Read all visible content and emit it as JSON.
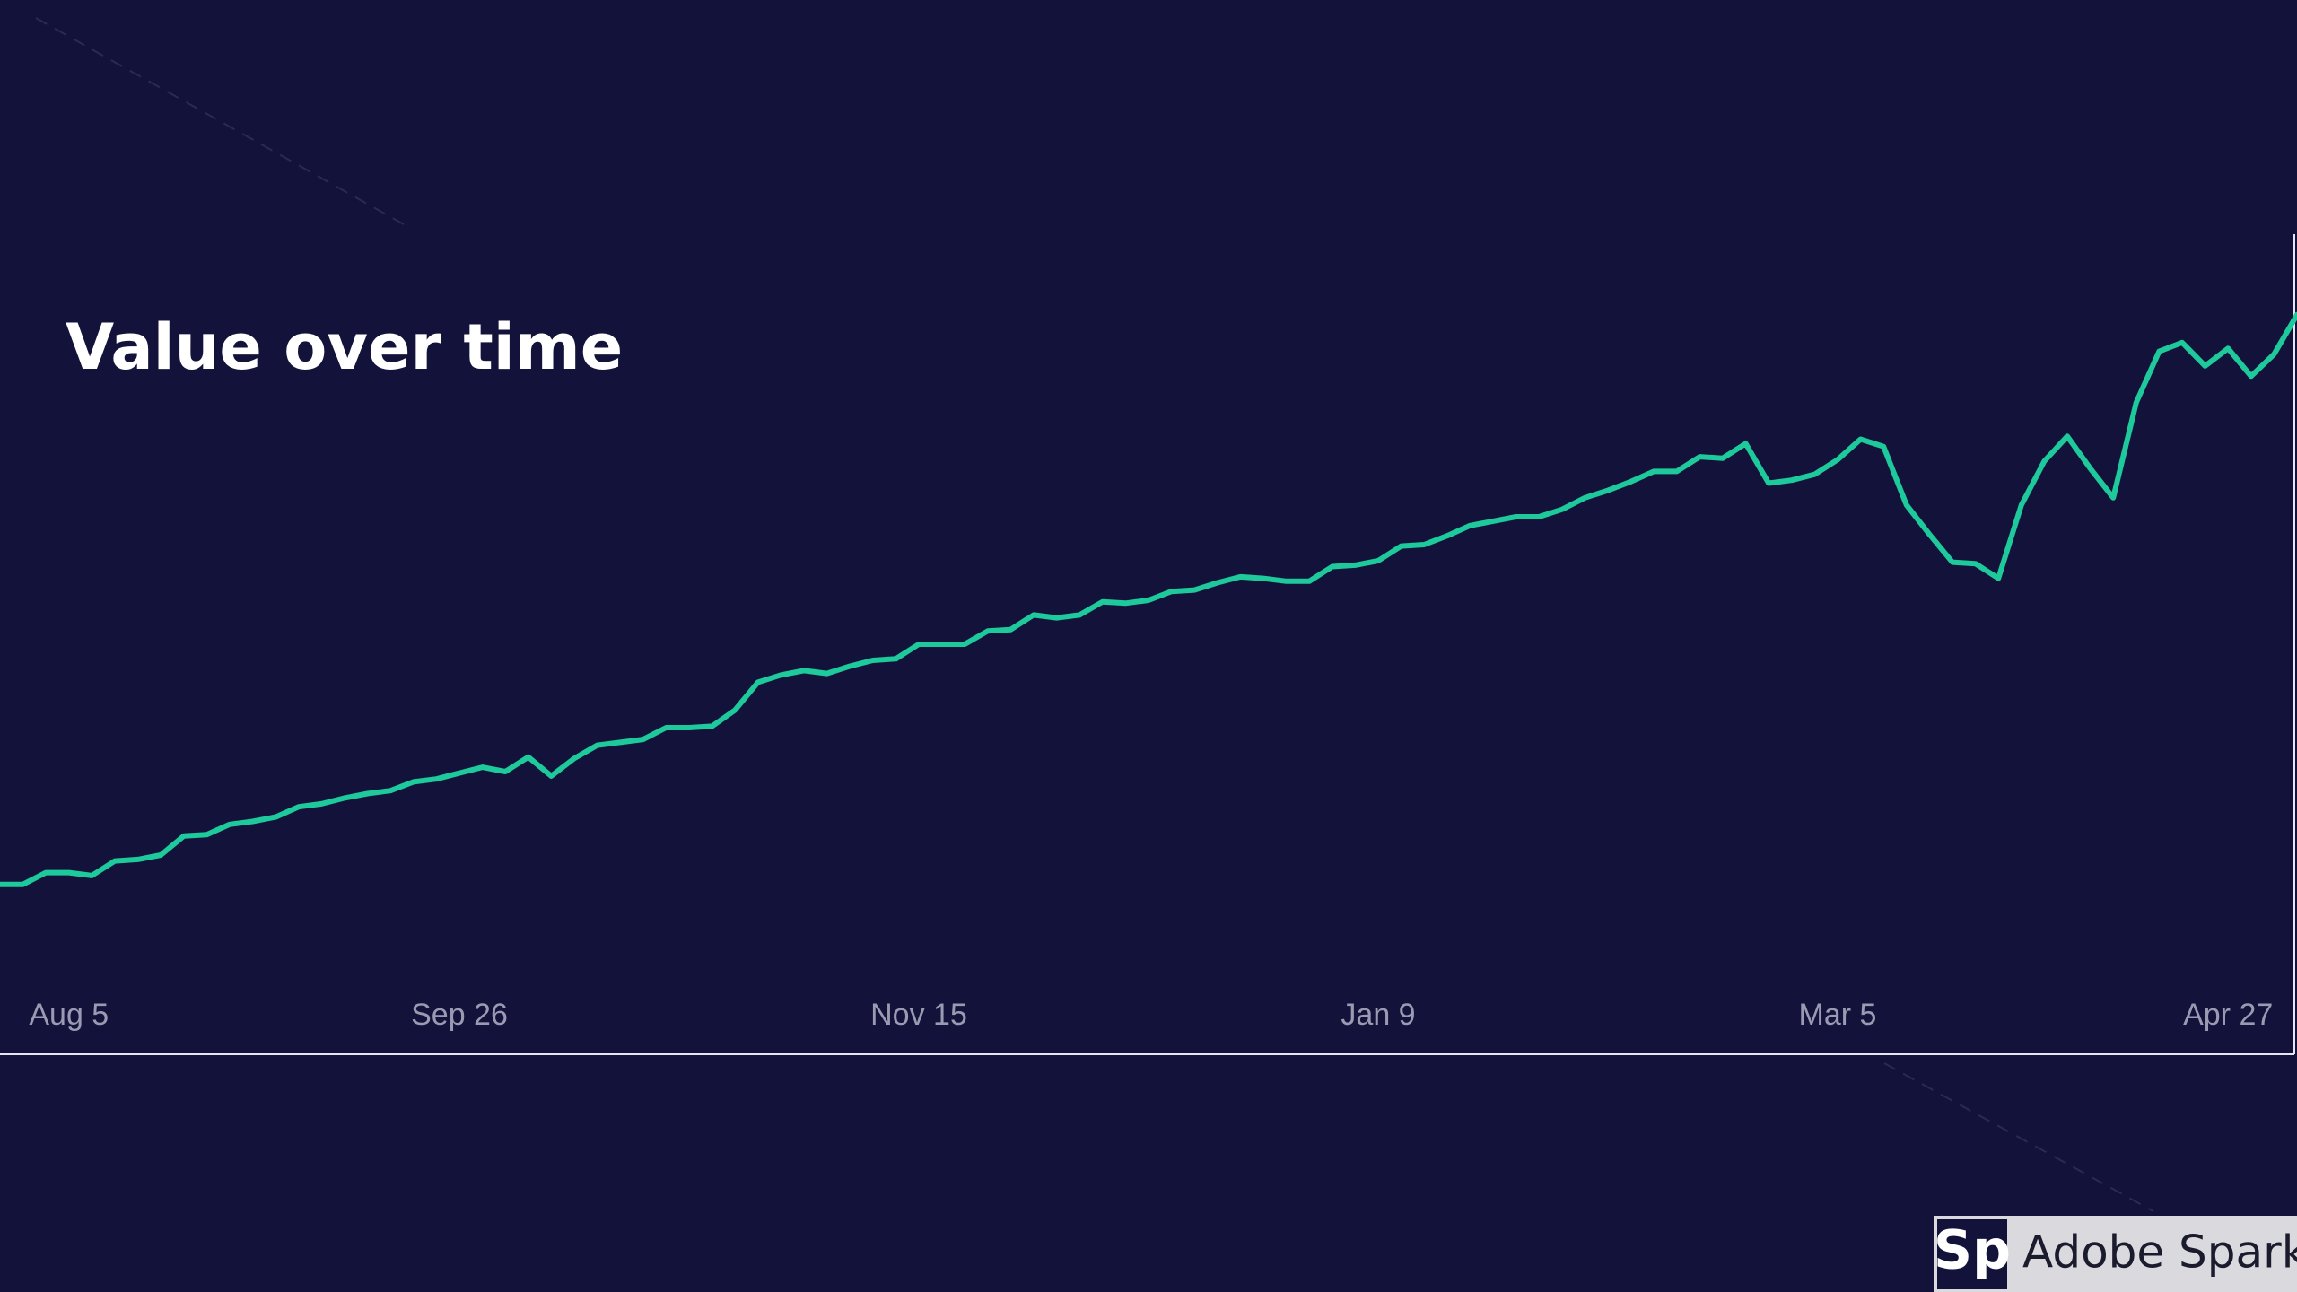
{
  "chart_data": {
    "type": "line",
    "title": "Value over time",
    "categories": [
      null,
      null,
      null,
      "Aug 5",
      null,
      null,
      null,
      null,
      null,
      null,
      null,
      null,
      null,
      null,
      null,
      null,
      null,
      null,
      null,
      null,
      "Sep 26",
      null,
      null,
      null,
      null,
      null,
      null,
      null,
      null,
      null,
      null,
      null,
      null,
      null,
      null,
      null,
      null,
      null,
      null,
      null,
      "Nov 15",
      null,
      null,
      null,
      null,
      null,
      null,
      null,
      null,
      null,
      null,
      null,
      null,
      null,
      null,
      null,
      null,
      null,
      null,
      null,
      "Jan 9",
      null,
      null,
      null,
      null,
      null,
      null,
      null,
      null,
      null,
      null,
      null,
      null,
      null,
      null,
      null,
      null,
      null,
      null,
      null,
      "Mar 5",
      null,
      null,
      null,
      null,
      null,
      null,
      null,
      null,
      null,
      null,
      null,
      null,
      null,
      null,
      null,
      null,
      "Apr 27",
      null,
      null,
      null
    ],
    "values": [
      116,
      116,
      124,
      124,
      122,
      132,
      133,
      136,
      149,
      150,
      157,
      159,
      162,
      169,
      171,
      175,
      178,
      180,
      186,
      188,
      192,
      196,
      193,
      203,
      190,
      202,
      211,
      213,
      215,
      223,
      223,
      224,
      235,
      254,
      259,
      262,
      260,
      265,
      269,
      270,
      280,
      280,
      280,
      289,
      290,
      300,
      298,
      300,
      309,
      308,
      310,
      316,
      317,
      322,
      326,
      325,
      323,
      323,
      333,
      334,
      337,
      347,
      348,
      354,
      361,
      364,
      367,
      367,
      372,
      380,
      385,
      391,
      398,
      398,
      408,
      407,
      417,
      390,
      392,
      396,
      406,
      420,
      415,
      375,
      355,
      336,
      335,
      325,
      375,
      405,
      422,
      400,
      380,
      445,
      480,
      486,
      470,
      482,
      463,
      478,
      505
    ],
    "color": "#1ec99b",
    "ylim": [
      0,
      560
    ]
  },
  "badge": {
    "icon": "Sp",
    "label": "Adobe Spark"
  }
}
